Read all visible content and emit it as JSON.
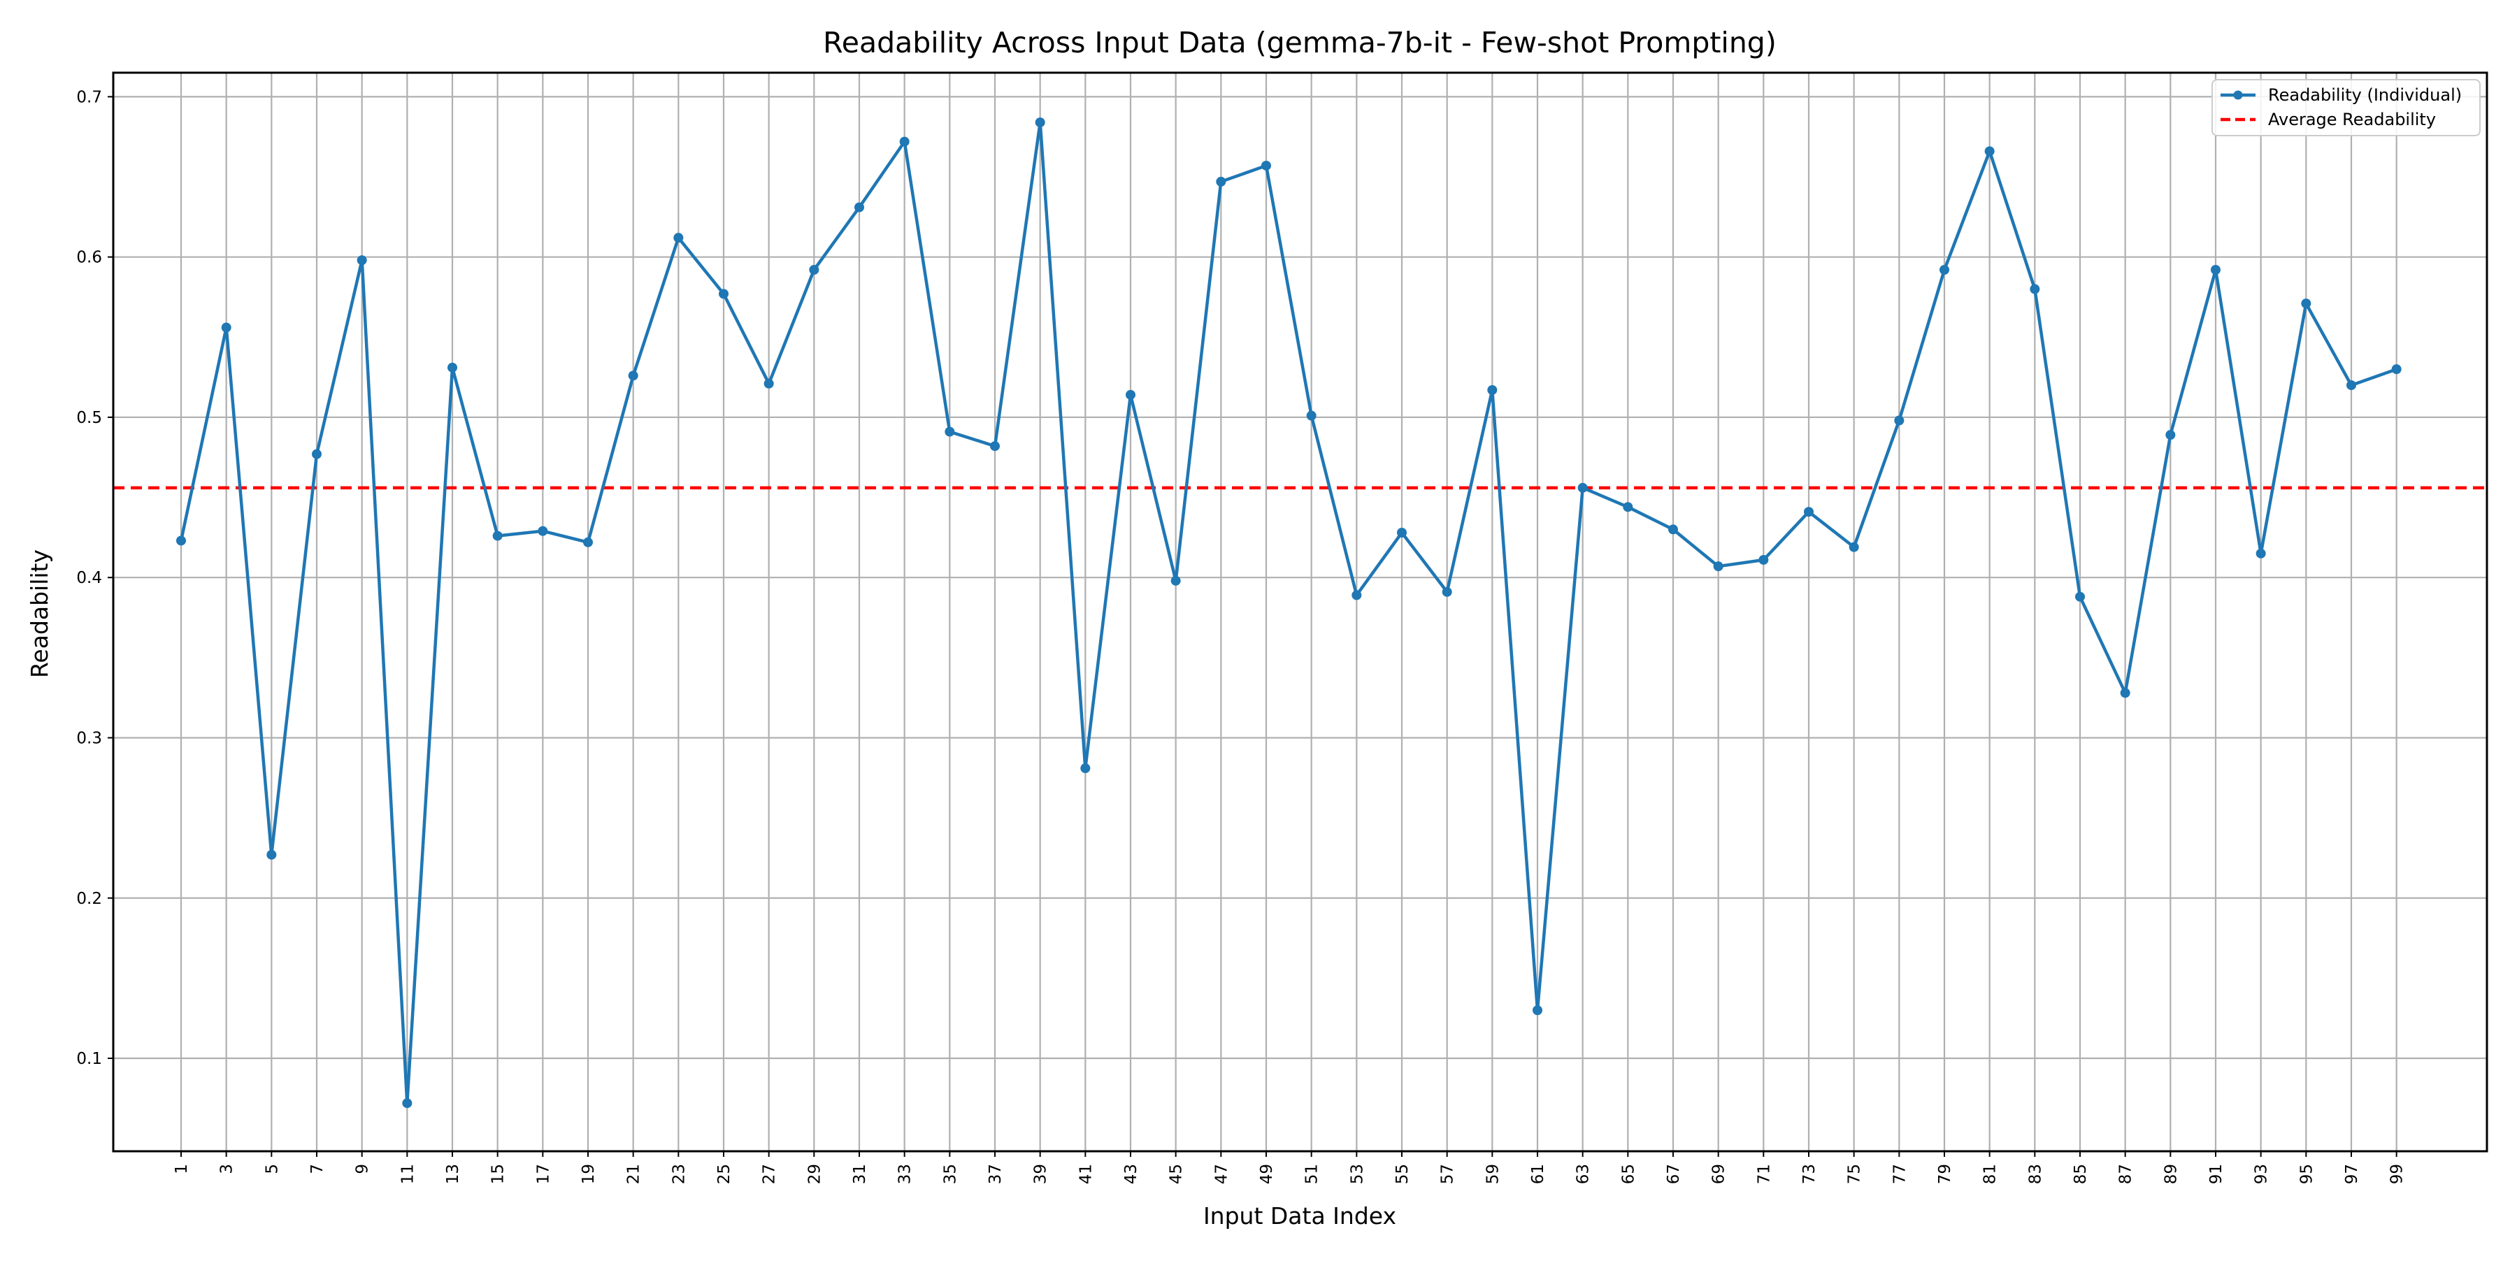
{
  "chart_data": {
    "type": "line",
    "title": "Readability Across Input Data (gemma-7b-it - Few-shot Prompting)",
    "xlabel": "Input Data Index",
    "ylabel": "Readability",
    "x": [
      1,
      3,
      5,
      7,
      9,
      11,
      13,
      15,
      17,
      19,
      21,
      23,
      25,
      27,
      29,
      31,
      33,
      35,
      37,
      39,
      41,
      43,
      45,
      47,
      49,
      51,
      53,
      55,
      57,
      59,
      61,
      63,
      65,
      67,
      69,
      71,
      73,
      75,
      77,
      79,
      81,
      83,
      85,
      87,
      89,
      91,
      93,
      95,
      97,
      99
    ],
    "x_ticks": [
      "1",
      "3",
      "5",
      "7",
      "9",
      "11",
      "13",
      "15",
      "17",
      "19",
      "21",
      "23",
      "25",
      "27",
      "29",
      "31",
      "33",
      "35",
      "37",
      "39",
      "41",
      "43",
      "45",
      "47",
      "49",
      "51",
      "53",
      "55",
      "57",
      "59",
      "61",
      "63",
      "65",
      "67",
      "69",
      "71",
      "73",
      "75",
      "77",
      "79",
      "81",
      "83",
      "85",
      "87",
      "89",
      "91",
      "93",
      "95",
      "97",
      "99"
    ],
    "xlim": [
      -2,
      103
    ],
    "ylim": [
      0.042,
      0.715
    ],
    "y_ticks": [
      "0.1",
      "0.2",
      "0.3",
      "0.4",
      "0.5",
      "0.6",
      "0.7"
    ],
    "y_tick_values": [
      0.1,
      0.2,
      0.3,
      0.4,
      0.5,
      0.6,
      0.7
    ],
    "grid": true,
    "legend_position": "top-right",
    "series": [
      {
        "name": "Readability (Individual)",
        "style": "line-with-markers",
        "color": "#1f77b4",
        "values": [
          0.423,
          0.556,
          0.227,
          0.477,
          0.598,
          0.072,
          0.531,
          0.426,
          0.429,
          0.422,
          0.526,
          0.612,
          0.577,
          0.521,
          0.592,
          0.631,
          0.672,
          0.491,
          0.482,
          0.684,
          0.281,
          0.514,
          0.398,
          0.647,
          0.657,
          0.501,
          0.389,
          0.428,
          0.391,
          0.517,
          0.13,
          0.456,
          0.444,
          0.43,
          0.407,
          0.411,
          0.441,
          0.419,
          0.498,
          0.592,
          0.666,
          0.58,
          0.388,
          0.328,
          0.489,
          0.592,
          0.415,
          0.571,
          0.52,
          0.53
        ]
      },
      {
        "name": "Average Readability",
        "style": "dashed-horizontal",
        "color": "#ff0000",
        "value": 0.456
      }
    ]
  }
}
